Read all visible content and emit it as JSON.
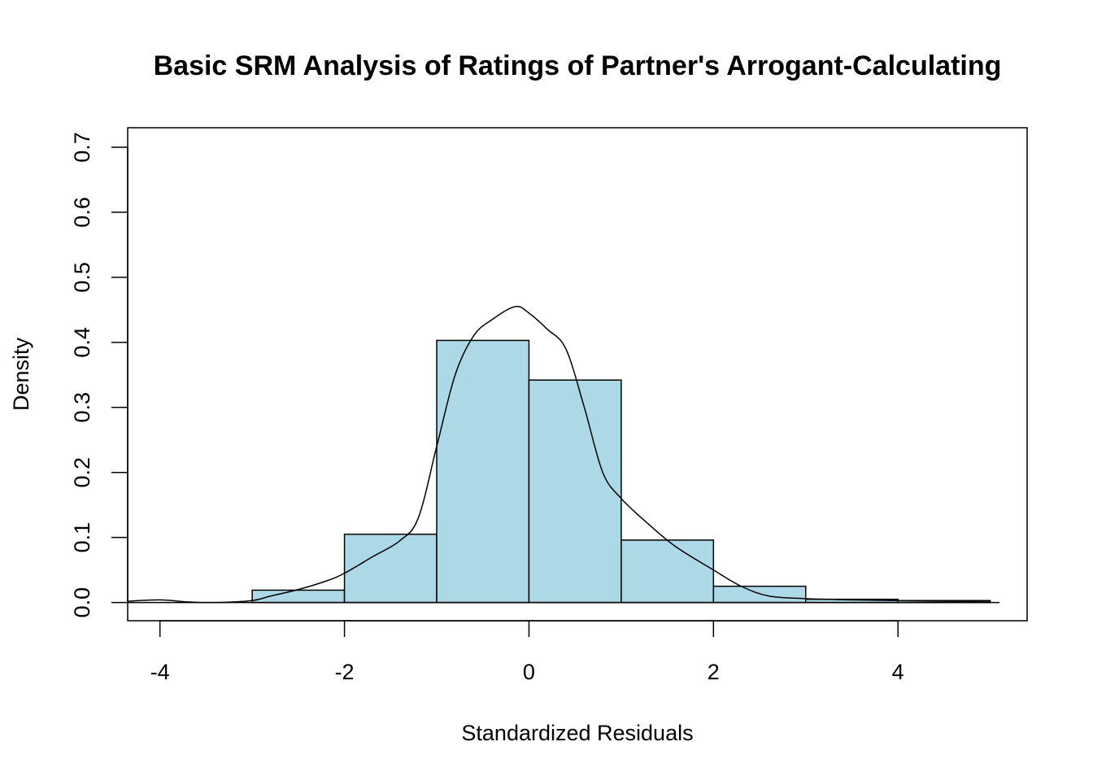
{
  "chart_data": {
    "type": "bar",
    "title": "Basic SRM Analysis of Ratings of Partner's Arrogant-Calculating",
    "xlabel": "Standardized Residuals",
    "ylabel": "Density",
    "xlim": [
      -4.35,
      5.4
    ],
    "ylim": [
      -0.028,
      0.73
    ],
    "x_ticks": [
      {
        "value": -4,
        "label": "-4"
      },
      {
        "value": -2,
        "label": "-2"
      },
      {
        "value": 0,
        "label": "0"
      },
      {
        "value": 2,
        "label": "2"
      },
      {
        "value": 4,
        "label": "4"
      }
    ],
    "y_ticks": [
      {
        "value": 0.0,
        "label": "0.0"
      },
      {
        "value": 0.1,
        "label": "0.1"
      },
      {
        "value": 0.2,
        "label": "0.2"
      },
      {
        "value": 0.3,
        "label": "0.3"
      },
      {
        "value": 0.4,
        "label": "0.4"
      },
      {
        "value": 0.5,
        "label": "0.5"
      },
      {
        "value": 0.6,
        "label": "0.6"
      },
      {
        "value": 0.7,
        "label": "0.7"
      }
    ],
    "bins": [
      {
        "x0": -3,
        "x1": -2,
        "density": 0.019
      },
      {
        "x0": -2,
        "x1": -1,
        "density": 0.105
      },
      {
        "x0": -1,
        "x1": 0,
        "density": 0.403
      },
      {
        "x0": 0,
        "x1": 1,
        "density": 0.342
      },
      {
        "x0": 1,
        "x1": 2,
        "density": 0.096
      },
      {
        "x0": 2,
        "x1": 3,
        "density": 0.025
      },
      {
        "x0": 3,
        "x1": 4,
        "density": 0.005
      },
      {
        "x0": 4,
        "x1": 5,
        "density": 0.003
      }
    ],
    "density_curve": {
      "x": [
        -4.35,
        -4.0,
        -3.7,
        -3.4,
        -3.0,
        -2.8,
        -2.5,
        -2.2,
        -2.0,
        -1.7,
        -1.4,
        -1.2,
        -1.0,
        -0.8,
        -0.6,
        -0.4,
        -0.15,
        0.0,
        0.2,
        0.4,
        0.6,
        0.8,
        1.0,
        1.3,
        1.6,
        2.0,
        2.3,
        2.6,
        3.0,
        3.5,
        4.0,
        4.5,
        5.0
      ],
      "y": [
        0.002,
        0.004,
        0.001,
        0.0,
        0.003,
        0.01,
        0.02,
        0.033,
        0.045,
        0.07,
        0.095,
        0.13,
        0.24,
        0.35,
        0.41,
        0.435,
        0.455,
        0.445,
        0.42,
        0.39,
        0.3,
        0.2,
        0.16,
        0.12,
        0.085,
        0.05,
        0.025,
        0.01,
        0.006,
        0.004,
        0.003,
        0.002,
        0.002
      ]
    },
    "colors": {
      "bar_fill": "#add8e6",
      "stroke": "#000000"
    },
    "grid": false
  }
}
